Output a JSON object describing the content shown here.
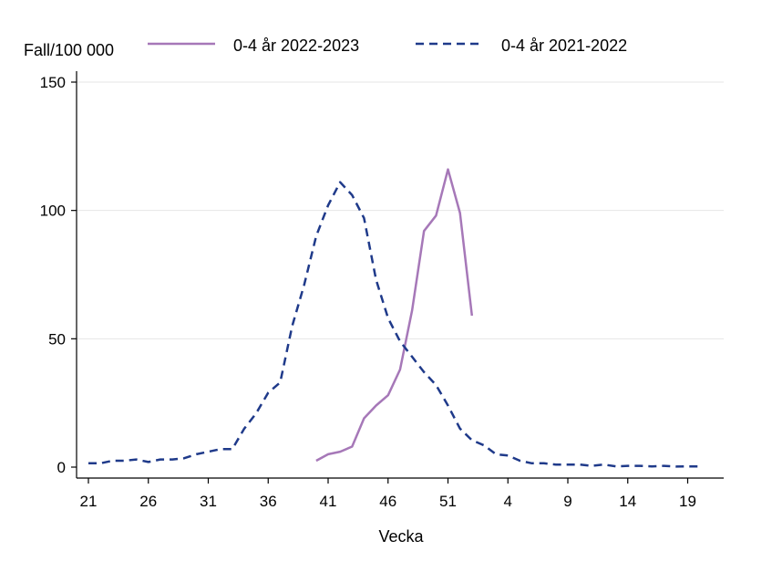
{
  "chart_data": {
    "type": "line",
    "title": "",
    "xlabel": "Vecka",
    "ylabel": "Fall/100 000",
    "ylim": [
      0,
      150
    ],
    "yticks": [
      0,
      50,
      100,
      150
    ],
    "grid": "horizontal",
    "legend_position": "top",
    "x_order": [
      21,
      22,
      23,
      24,
      25,
      26,
      27,
      28,
      29,
      30,
      31,
      32,
      33,
      34,
      35,
      36,
      37,
      38,
      39,
      40,
      41,
      42,
      43,
      44,
      45,
      46,
      47,
      48,
      49,
      50,
      51,
      52,
      1,
      2,
      3,
      4,
      5,
      6,
      7,
      8,
      9,
      10,
      11,
      12,
      13,
      14,
      15,
      16,
      17,
      18,
      19,
      20
    ],
    "xtick_labels": [
      "21",
      "26",
      "31",
      "36",
      "41",
      "46",
      "51",
      "4",
      "9",
      "14",
      "19"
    ],
    "series": [
      {
        "name": "0-4 år 2022-2023",
        "color": "#a678b8",
        "style": "solid",
        "x": [
          40,
          41,
          42,
          43,
          44,
          45,
          46,
          47,
          48,
          49,
          50,
          51,
          52,
          1
        ],
        "values": [
          2.5,
          5,
          6,
          8,
          19,
          24,
          28,
          38,
          61,
          92,
          98,
          116,
          99,
          59
        ]
      },
      {
        "name": "0-4 år 2021-2022",
        "color": "#1f3a8a",
        "style": "dashed",
        "x": [
          21,
          22,
          23,
          24,
          25,
          26,
          27,
          28,
          29,
          30,
          31,
          32,
          33,
          34,
          35,
          36,
          37,
          38,
          39,
          40,
          41,
          42,
          43,
          44,
          45,
          46,
          47,
          48,
          49,
          50,
          51,
          52,
          1,
          2,
          3,
          4,
          5,
          6,
          7,
          8,
          9,
          10,
          11,
          12,
          13,
          14,
          15,
          16,
          17,
          18,
          19,
          20
        ],
        "values": [
          1.5,
          1.5,
          2.5,
          2.5,
          3,
          2,
          3,
          3,
          3.5,
          5,
          6,
          7,
          7,
          15,
          21,
          29,
          33,
          55,
          71,
          90,
          102,
          111,
          106,
          97,
          73,
          58,
          49,
          43,
          37,
          32,
          24,
          15,
          10.5,
          8.5,
          5,
          4.5,
          2.5,
          1.5,
          1.5,
          1,
          1,
          1,
          0.5,
          1,
          0.3,
          0.5,
          0.5,
          0.3,
          0.5,
          0.2,
          0.3,
          0.3
        ]
      }
    ]
  }
}
